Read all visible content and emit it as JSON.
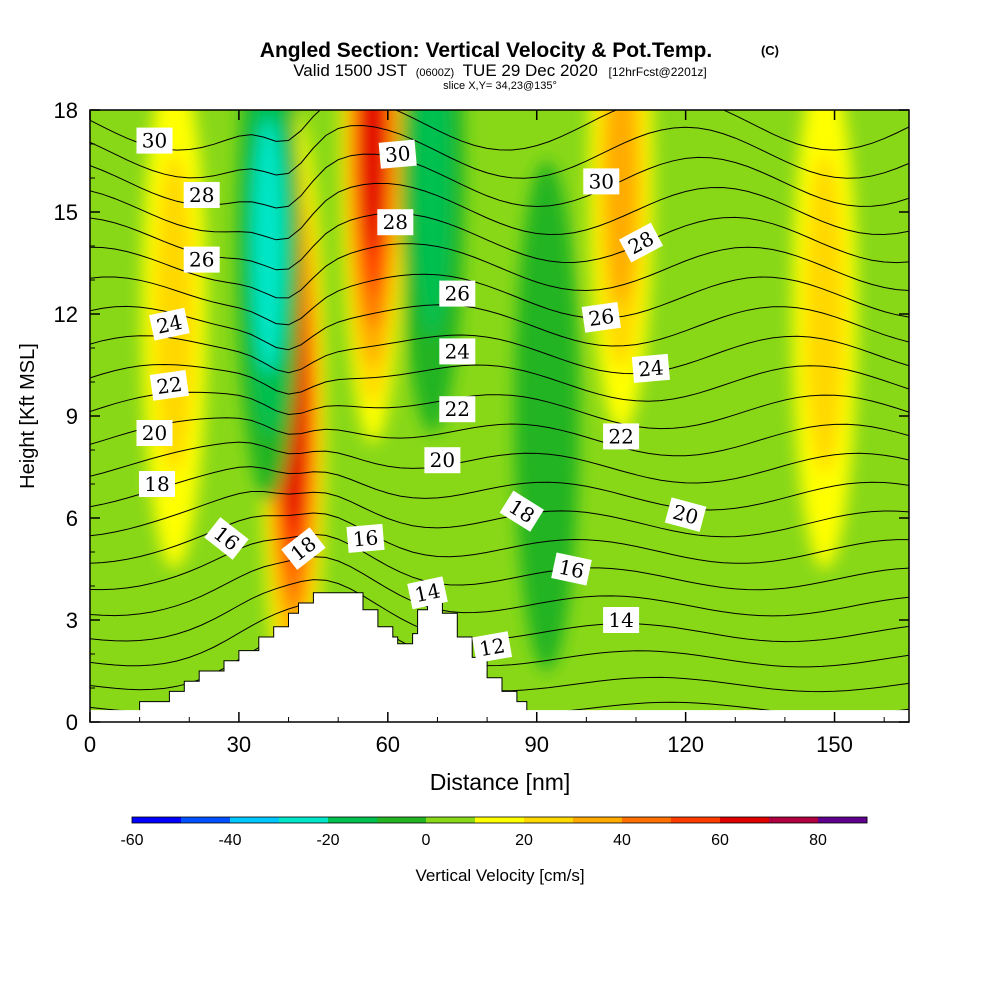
{
  "chart_data": {
    "type": "contour",
    "title": "Angled Section: Vertical Velocity & Pot.Temp.",
    "title_suffix": "(C)",
    "subtitle_parts": {
      "valid": "Valid 1500 JST",
      "utc": "(0600Z)",
      "date": "TUE 29 Dec 2020",
      "forecast": "[12hrFcst@2201z]"
    },
    "slice_label": "slice X,Y= 34,23@135°",
    "xlabel": "Distance [nm]",
    "ylabel": "Height [Kft MSL]",
    "xlim": [
      0,
      165
    ],
    "ylim": [
      0,
      18
    ],
    "x_ticks": [
      "0",
      "30",
      "60",
      "90",
      "120",
      "150"
    ],
    "y_ticks": [
      "0",
      "3",
      "6",
      "9",
      "12",
      "15",
      "18"
    ],
    "colorbar": {
      "label": "Vertical Velocity [cm/s]",
      "range": [
        -60,
        90
      ],
      "step": 10,
      "ticks": [
        "-60",
        "-40",
        "-20",
        "0",
        "20",
        "40",
        "60",
        "80"
      ],
      "colors": [
        "#0000ff",
        "#0050ff",
        "#00c8ff",
        "#00e6c8",
        "#00c050",
        "#22b422",
        "#88d818",
        "#ffff00",
        "#ffd800",
        "#ffaa00",
        "#ff7000",
        "#ff3c00",
        "#e00000",
        "#b00040",
        "#60008c"
      ]
    },
    "velocity_field": [
      {
        "name": "strong-updraft-core",
        "x": 41,
        "y": 9,
        "value": 60
      },
      {
        "name": "upper-updraft-core",
        "x": 57,
        "y": 17.2,
        "value": 60
      },
      {
        "name": "downdraft-column",
        "x": 36,
        "y": 14,
        "value": -30
      },
      {
        "name": "narrow-downdraft",
        "x": 69,
        "y": 16,
        "value": -20
      },
      {
        "name": "right-updraft-band",
        "x": 107,
        "y": 16,
        "value": 30
      },
      {
        "name": "far-right-updraft",
        "x": 148,
        "y": 12,
        "value": 20
      },
      {
        "name": "left-updraft-band",
        "x": 17,
        "y": 12,
        "value": 20
      },
      {
        "name": "weak-sinking-zone",
        "x": 92,
        "y": 9,
        "value": -10
      }
    ],
    "terrain_profile": {
      "x": [
        10,
        16,
        19,
        22,
        27,
        30,
        34,
        37,
        40,
        42,
        45,
        52,
        55,
        58,
        61,
        62,
        65,
        66,
        68,
        71,
        74,
        77,
        80,
        83,
        86,
        88,
        90
      ],
      "y": [
        0.6,
        0.9,
        1.2,
        1.5,
        1.8,
        2.1,
        2.5,
        2.8,
        3.2,
        3.5,
        3.8,
        3.8,
        3.3,
        2.8,
        2.5,
        2.3,
        2.6,
        3.3,
        3.6,
        3.2,
        2.5,
        1.9,
        1.3,
        0.9,
        0.6,
        0.3,
        0
      ]
    },
    "theta_contours": {
      "units": "C",
      "levels": [
        10,
        11,
        12,
        13,
        14,
        15,
        16,
        17,
        18,
        19,
        20,
        21,
        22,
        23,
        24,
        25,
        26,
        27,
        28,
        29,
        30,
        31
      ],
      "labels": [
        {
          "text": "30",
          "x": 13,
          "y": 17.1,
          "angle": 0
        },
        {
          "text": "28",
          "x": 22.5,
          "y": 15.5,
          "angle": 0
        },
        {
          "text": "26",
          "x": 22.5,
          "y": 13.6,
          "angle": 0
        },
        {
          "text": "24",
          "x": 16,
          "y": 11.7,
          "angle": -12
        },
        {
          "text": "22",
          "x": 16,
          "y": 9.9,
          "angle": -8
        },
        {
          "text": "20",
          "x": 13,
          "y": 8.5,
          "angle": 0
        },
        {
          "text": "18",
          "x": 13.5,
          "y": 7,
          "angle": 0
        },
        {
          "text": "16",
          "x": 27.5,
          "y": 5.4,
          "angle": 38
        },
        {
          "text": "18",
          "x": 43,
          "y": 5.1,
          "angle": -38
        },
        {
          "text": "16",
          "x": 55.5,
          "y": 5.4,
          "angle": -5
        },
        {
          "text": "30",
          "x": 62,
          "y": 16.7,
          "angle": -5
        },
        {
          "text": "28",
          "x": 61.5,
          "y": 14.7,
          "angle": 0
        },
        {
          "text": "26",
          "x": 74,
          "y": 12.6,
          "angle": 0
        },
        {
          "text": "24",
          "x": 74,
          "y": 10.9,
          "angle": 0
        },
        {
          "text": "22",
          "x": 74,
          "y": 9.2,
          "angle": 0
        },
        {
          "text": "20",
          "x": 71,
          "y": 7.7,
          "angle": 0
        },
        {
          "text": "14",
          "x": 68,
          "y": 3.8,
          "angle": -12
        },
        {
          "text": "12",
          "x": 81,
          "y": 2.2,
          "angle": -10
        },
        {
          "text": "30",
          "x": 103,
          "y": 15.9,
          "angle": 0
        },
        {
          "text": "28",
          "x": 111,
          "y": 14.1,
          "angle": -28
        },
        {
          "text": "26",
          "x": 103,
          "y": 11.9,
          "angle": -8
        },
        {
          "text": "24",
          "x": 113,
          "y": 10.4,
          "angle": -5
        },
        {
          "text": "22",
          "x": 107,
          "y": 8.4,
          "angle": 0
        },
        {
          "text": "18",
          "x": 87,
          "y": 6.2,
          "angle": 32
        },
        {
          "text": "20",
          "x": 120,
          "y": 6.1,
          "angle": 15
        },
        {
          "text": "16",
          "x": 97,
          "y": 4.5,
          "angle": 12
        },
        {
          "text": "14",
          "x": 107,
          "y": 3
        },
        {
          "text": "",
          "x": 0,
          "y": 0
        }
      ]
    }
  }
}
